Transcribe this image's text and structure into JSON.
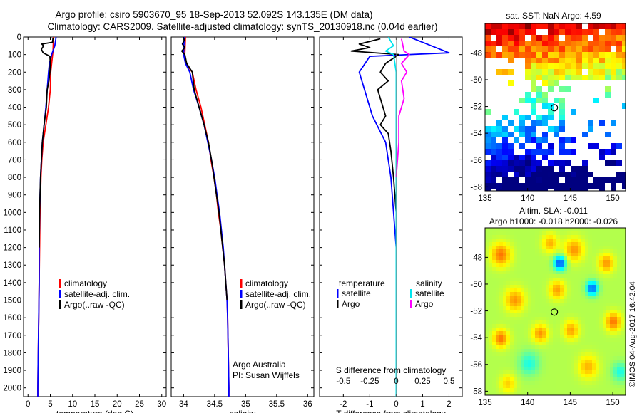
{
  "page": {
    "title_line1": "Argo profile: csiro 5903670_95 18-Sep-2013 52.092S 143.135E (DM data)",
    "title_line2": "Climatology: CARS2009. Satellite-adjusted climatology: synTS_20130918.nc (0.04d earlier)",
    "credit": "Argo Australia",
    "pi": "PI: Susan Wijffels",
    "stamp": "©IMOS 04-Aug-2017 16:42:04"
  },
  "colors": {
    "climatology": "#ff0000",
    "satellite": "#0000ff",
    "argo": "#000000",
    "satellite_salinity": "#00e5ee",
    "argo_salinity": "#ff00ff"
  },
  "chart_data": [
    {
      "id": "temperature",
      "type": "line",
      "xlabel": "temperature (deg C)",
      "ylim": [
        2050,
        0
      ],
      "xlim": [
        -1,
        31
      ],
      "xticks": [
        0,
        5,
        10,
        15,
        20,
        25,
        30
      ],
      "yticks": [
        0,
        100,
        200,
        300,
        400,
        500,
        600,
        700,
        800,
        900,
        1000,
        1100,
        1200,
        1300,
        1400,
        1500,
        1600,
        1700,
        1800,
        1900,
        2000
      ],
      "legend": [
        "climatology",
        "satellite-adj. clim.",
        "Argo(..raw -QC)"
      ],
      "series": [
        {
          "name": "climatology",
          "color": "#ff0000",
          "points": [
            [
              5.7,
              0
            ],
            [
              5.6,
              80
            ],
            [
              5.3,
              150
            ],
            [
              5.1,
              200
            ],
            [
              5.0,
              300
            ],
            [
              4.6,
              400
            ],
            [
              4.0,
              500
            ],
            [
              3.4,
              600
            ],
            [
              3.1,
              700
            ],
            [
              2.9,
              800
            ],
            [
              2.8,
              900
            ],
            [
              2.7,
              1000
            ],
            [
              2.6,
              1200
            ],
            [
              2.5,
              1400
            ],
            [
              2.4,
              1600
            ],
            [
              2.3,
              1800
            ],
            [
              2.2,
              2000
            ],
            [
              2.2,
              2050
            ]
          ]
        },
        {
          "name": "satellite-adj. clim.",
          "color": "#0000ff",
          "points": [
            [
              6.3,
              0
            ],
            [
              6.0,
              50
            ],
            [
              5.3,
              100
            ],
            [
              4.8,
              150
            ],
            [
              4.6,
              200
            ],
            [
              4.3,
              300
            ],
            [
              4.0,
              400
            ],
            [
              3.6,
              500
            ],
            [
              3.2,
              600
            ],
            [
              3.0,
              700
            ],
            [
              2.8,
              800
            ],
            [
              2.7,
              900
            ],
            [
              2.6,
              1000
            ],
            [
              2.5,
              1200
            ],
            [
              2.5,
              1400
            ],
            [
              2.4,
              1600
            ],
            [
              2.3,
              1800
            ],
            [
              2.2,
              2000
            ],
            [
              2.2,
              2050
            ]
          ]
        },
        {
          "name": "Argo(..raw -QC)",
          "color": "#000000",
          "points": [
            [
              5.6,
              5
            ],
            [
              5.5,
              30
            ],
            [
              3.1,
              40
            ],
            [
              3.5,
              50
            ],
            [
              3.0,
              70
            ],
            [
              3.4,
              90
            ],
            [
              4.9,
              110
            ],
            [
              5.0,
              150
            ],
            [
              4.9,
              200
            ],
            [
              4.7,
              250
            ],
            [
              4.3,
              300
            ],
            [
              4.1,
              400
            ],
            [
              3.6,
              500
            ],
            [
              3.2,
              600
            ],
            [
              3.0,
              700
            ],
            [
              2.8,
              800
            ],
            [
              2.7,
              900
            ],
            [
              2.6,
              1000
            ],
            [
              2.5,
              1200
            ]
          ]
        }
      ]
    },
    {
      "id": "salinity",
      "type": "line",
      "xlabel": "salinity",
      "ylim": [
        2050,
        0
      ],
      "xlim": [
        33.8,
        36.1
      ],
      "xticks": [
        34,
        34.5,
        35,
        35.5,
        36
      ],
      "legend": [
        "climatology",
        "satellite-adj. clim.",
        "Argo(..raw -QC)"
      ],
      "series": [
        {
          "name": "climatology",
          "color": "#ff0000",
          "points": [
            [
              34.03,
              0
            ],
            [
              34.02,
              100
            ],
            [
              34.03,
              150
            ],
            [
              34.14,
              200
            ],
            [
              34.2,
              300
            ],
            [
              34.28,
              400
            ],
            [
              34.34,
              500
            ],
            [
              34.4,
              600
            ],
            [
              34.44,
              700
            ],
            [
              34.49,
              800
            ],
            [
              34.53,
              900
            ],
            [
              34.56,
              1000
            ],
            [
              34.6,
              1100
            ],
            [
              34.63,
              1200
            ],
            [
              34.66,
              1300
            ],
            [
              34.68,
              1400
            ],
            [
              34.7,
              1500
            ],
            [
              34.71,
              1600
            ],
            [
              34.72,
              1800
            ],
            [
              34.73,
              2000
            ],
            [
              34.73,
              2050
            ]
          ]
        },
        {
          "name": "satellite-adj. clim.",
          "color": "#0000ff",
          "points": [
            [
              34.01,
              0
            ],
            [
              34.0,
              100
            ],
            [
              34.03,
              150
            ],
            [
              34.1,
              200
            ],
            [
              34.16,
              300
            ],
            [
              34.25,
              400
            ],
            [
              34.33,
              500
            ],
            [
              34.39,
              600
            ],
            [
              34.45,
              700
            ],
            [
              34.5,
              800
            ],
            [
              34.54,
              900
            ],
            [
              34.58,
              1000
            ],
            [
              34.61,
              1100
            ],
            [
              34.64,
              1200
            ],
            [
              34.66,
              1300
            ],
            [
              34.68,
              1400
            ],
            [
              34.7,
              1500
            ],
            [
              34.71,
              1600
            ],
            [
              34.72,
              1800
            ],
            [
              34.73,
              2000
            ],
            [
              34.73,
              2050
            ]
          ]
        },
        {
          "name": "Argo(..raw -QC)",
          "color": "#000000",
          "points": [
            [
              34.02,
              10
            ],
            [
              33.98,
              40
            ],
            [
              34.02,
              60
            ],
            [
              33.97,
              80
            ],
            [
              34.02,
              100
            ],
            [
              34.05,
              150
            ],
            [
              34.14,
              200
            ],
            [
              34.17,
              300
            ],
            [
              34.25,
              400
            ],
            [
              34.33,
              500
            ],
            [
              34.4,
              600
            ],
            [
              34.45,
              700
            ],
            [
              34.49,
              800
            ],
            [
              34.53,
              900
            ],
            [
              34.57,
              1000
            ],
            [
              34.6,
              1100
            ],
            [
              34.63,
              1200
            ],
            [
              34.66,
              1300
            ],
            [
              34.68,
              1400
            ],
            [
              34.7,
              1500
            ]
          ]
        }
      ]
    },
    {
      "id": "differences",
      "type": "line",
      "xlabel": "T difference from climatology",
      "xlabel2": "S difference from climatology",
      "ylim": [
        2050,
        0
      ],
      "xlim": [
        -2.9,
        2.5
      ],
      "xticks": [
        -2,
        -1,
        0,
        1,
        2
      ],
      "s_ticks": [
        {
          "label": "-0.5",
          "t": -2
        },
        {
          "label": "-0.25",
          "t": -1
        },
        {
          "label": "0",
          "t": 0
        },
        {
          "label": "0.25",
          "t": 1
        },
        {
          "label": "0.5",
          "t": 2
        }
      ],
      "legend_t_heading": "temperature",
      "legend_s_heading": "salinity",
      "legend_t": [
        "satellite",
        "Argo"
      ],
      "legend_s": [
        "satellite",
        "Argo"
      ],
      "series": [
        {
          "name": "satellite",
          "color": "#0000ff",
          "points": [
            [
              0.5,
              0
            ],
            [
              1.5,
              60
            ],
            [
              2.0,
              90
            ],
            [
              0.5,
              100
            ],
            [
              -1.0,
              110
            ],
            [
              -1.4,
              200
            ],
            [
              -1.2,
              300
            ],
            [
              -0.9,
              450
            ],
            [
              -0.4,
              600
            ],
            [
              -0.2,
              800
            ],
            [
              -0.1,
              1000
            ],
            [
              0.0,
              1200
            ],
            [
              0.0,
              1500
            ],
            [
              0.0,
              2050
            ]
          ]
        },
        {
          "name": "Argo",
          "color": "#000000",
          "points": [
            [
              -0.6,
              10
            ],
            [
              -1.4,
              40
            ],
            [
              -1.0,
              60
            ],
            [
              -1.7,
              80
            ],
            [
              0.1,
              100
            ],
            [
              -0.4,
              150
            ],
            [
              -0.6,
              200
            ],
            [
              -0.3,
              250
            ],
            [
              -0.7,
              300
            ],
            [
              -0.5,
              400
            ],
            [
              -0.4,
              450
            ],
            [
              -0.6,
              500
            ],
            [
              -0.3,
              550
            ],
            [
              -0.2,
              650
            ],
            [
              -0.1,
              800
            ],
            [
              0.0,
              1000
            ],
            [
              0.0,
              1100
            ]
          ]
        },
        {
          "name": "satellite",
          "color": "#00e5ee",
          "points": [
            [
              -0.3,
              0
            ],
            [
              -0.1,
              50
            ],
            [
              -0.4,
              80
            ],
            [
              -0.1,
              100
            ],
            [
              0.0,
              200
            ],
            [
              0.0,
              300
            ],
            [
              0.0,
              500
            ],
            [
              0.0,
              1000
            ],
            [
              0.0,
              1500
            ],
            [
              0.0,
              2050
            ]
          ]
        },
        {
          "name": "Argo",
          "color": "#ff00ff",
          "points": [
            [
              0.2,
              10
            ],
            [
              0.3,
              80
            ],
            [
              0.5,
              100
            ],
            [
              0.2,
              150
            ],
            [
              0.4,
              200
            ],
            [
              0.2,
              250
            ],
            [
              0.3,
              350
            ],
            [
              0.1,
              450
            ],
            [
              0.1,
              600
            ],
            [
              0.0,
              800
            ]
          ]
        }
      ]
    },
    {
      "id": "sst_map",
      "type": "heatmap",
      "title": "sat. SST: NaN Argo: 4.59",
      "xlim": [
        135,
        151.5
      ],
      "ylim": [
        -58.3,
        -45.8
      ],
      "xticks": [
        135,
        140,
        145,
        150
      ],
      "yticks": [
        -48,
        -50,
        -52,
        -54,
        -56,
        -58
      ],
      "marker": [
        143.135,
        -52.092
      ]
    },
    {
      "id": "sla_map",
      "type": "heatmap",
      "title": "Altim. SLA: -0.011",
      "subtitle": "Argo h1000: -0.018 h2000: -0.026",
      "xlim": [
        135,
        151.5
      ],
      "ylim": [
        -58.3,
        -45.8
      ],
      "xticks": [
        135,
        140,
        145,
        150
      ],
      "yticks": [
        -48,
        -50,
        -52,
        -54,
        -56,
        -58
      ],
      "marker": [
        143.135,
        -52.092
      ]
    }
  ]
}
